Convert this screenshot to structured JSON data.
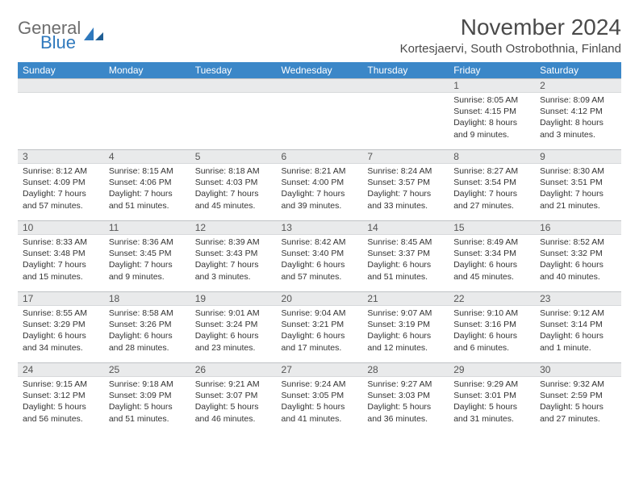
{
  "logo": {
    "word1": "General",
    "word2": "Blue",
    "brand_color": "#2f79bd",
    "gray": "#6d6d6d"
  },
  "header": {
    "title": "November 2024",
    "location": "Kortesjaervi, South Ostrobothnia, Finland"
  },
  "colors": {
    "th_bg": "#3b87c8",
    "th_text": "#ffffff",
    "daynum_bg": "#e9eaeb",
    "border": "#bfc2c5"
  },
  "weekdays": [
    "Sunday",
    "Monday",
    "Tuesday",
    "Wednesday",
    "Thursday",
    "Friday",
    "Saturday"
  ],
  "weeks": [
    [
      null,
      null,
      null,
      null,
      null,
      {
        "n": "1",
        "sr": "Sunrise: 8:05 AM",
        "ss": "Sunset: 4:15 PM",
        "d1": "Daylight: 8 hours",
        "d2": "and 9 minutes."
      },
      {
        "n": "2",
        "sr": "Sunrise: 8:09 AM",
        "ss": "Sunset: 4:12 PM",
        "d1": "Daylight: 8 hours",
        "d2": "and 3 minutes."
      }
    ],
    [
      {
        "n": "3",
        "sr": "Sunrise: 8:12 AM",
        "ss": "Sunset: 4:09 PM",
        "d1": "Daylight: 7 hours",
        "d2": "and 57 minutes."
      },
      {
        "n": "4",
        "sr": "Sunrise: 8:15 AM",
        "ss": "Sunset: 4:06 PM",
        "d1": "Daylight: 7 hours",
        "d2": "and 51 minutes."
      },
      {
        "n": "5",
        "sr": "Sunrise: 8:18 AM",
        "ss": "Sunset: 4:03 PM",
        "d1": "Daylight: 7 hours",
        "d2": "and 45 minutes."
      },
      {
        "n": "6",
        "sr": "Sunrise: 8:21 AM",
        "ss": "Sunset: 4:00 PM",
        "d1": "Daylight: 7 hours",
        "d2": "and 39 minutes."
      },
      {
        "n": "7",
        "sr": "Sunrise: 8:24 AM",
        "ss": "Sunset: 3:57 PM",
        "d1": "Daylight: 7 hours",
        "d2": "and 33 minutes."
      },
      {
        "n": "8",
        "sr": "Sunrise: 8:27 AM",
        "ss": "Sunset: 3:54 PM",
        "d1": "Daylight: 7 hours",
        "d2": "and 27 minutes."
      },
      {
        "n": "9",
        "sr": "Sunrise: 8:30 AM",
        "ss": "Sunset: 3:51 PM",
        "d1": "Daylight: 7 hours",
        "d2": "and 21 minutes."
      }
    ],
    [
      {
        "n": "10",
        "sr": "Sunrise: 8:33 AM",
        "ss": "Sunset: 3:48 PM",
        "d1": "Daylight: 7 hours",
        "d2": "and 15 minutes."
      },
      {
        "n": "11",
        "sr": "Sunrise: 8:36 AM",
        "ss": "Sunset: 3:45 PM",
        "d1": "Daylight: 7 hours",
        "d2": "and 9 minutes."
      },
      {
        "n": "12",
        "sr": "Sunrise: 8:39 AM",
        "ss": "Sunset: 3:43 PM",
        "d1": "Daylight: 7 hours",
        "d2": "and 3 minutes."
      },
      {
        "n": "13",
        "sr": "Sunrise: 8:42 AM",
        "ss": "Sunset: 3:40 PM",
        "d1": "Daylight: 6 hours",
        "d2": "and 57 minutes."
      },
      {
        "n": "14",
        "sr": "Sunrise: 8:45 AM",
        "ss": "Sunset: 3:37 PM",
        "d1": "Daylight: 6 hours",
        "d2": "and 51 minutes."
      },
      {
        "n": "15",
        "sr": "Sunrise: 8:49 AM",
        "ss": "Sunset: 3:34 PM",
        "d1": "Daylight: 6 hours",
        "d2": "and 45 minutes."
      },
      {
        "n": "16",
        "sr": "Sunrise: 8:52 AM",
        "ss": "Sunset: 3:32 PM",
        "d1": "Daylight: 6 hours",
        "d2": "and 40 minutes."
      }
    ],
    [
      {
        "n": "17",
        "sr": "Sunrise: 8:55 AM",
        "ss": "Sunset: 3:29 PM",
        "d1": "Daylight: 6 hours",
        "d2": "and 34 minutes."
      },
      {
        "n": "18",
        "sr": "Sunrise: 8:58 AM",
        "ss": "Sunset: 3:26 PM",
        "d1": "Daylight: 6 hours",
        "d2": "and 28 minutes."
      },
      {
        "n": "19",
        "sr": "Sunrise: 9:01 AM",
        "ss": "Sunset: 3:24 PM",
        "d1": "Daylight: 6 hours",
        "d2": "and 23 minutes."
      },
      {
        "n": "20",
        "sr": "Sunrise: 9:04 AM",
        "ss": "Sunset: 3:21 PM",
        "d1": "Daylight: 6 hours",
        "d2": "and 17 minutes."
      },
      {
        "n": "21",
        "sr": "Sunrise: 9:07 AM",
        "ss": "Sunset: 3:19 PM",
        "d1": "Daylight: 6 hours",
        "d2": "and 12 minutes."
      },
      {
        "n": "22",
        "sr": "Sunrise: 9:10 AM",
        "ss": "Sunset: 3:16 PM",
        "d1": "Daylight: 6 hours",
        "d2": "and 6 minutes."
      },
      {
        "n": "23",
        "sr": "Sunrise: 9:12 AM",
        "ss": "Sunset: 3:14 PM",
        "d1": "Daylight: 6 hours",
        "d2": "and 1 minute."
      }
    ],
    [
      {
        "n": "24",
        "sr": "Sunrise: 9:15 AM",
        "ss": "Sunset: 3:12 PM",
        "d1": "Daylight: 5 hours",
        "d2": "and 56 minutes."
      },
      {
        "n": "25",
        "sr": "Sunrise: 9:18 AM",
        "ss": "Sunset: 3:09 PM",
        "d1": "Daylight: 5 hours",
        "d2": "and 51 minutes."
      },
      {
        "n": "26",
        "sr": "Sunrise: 9:21 AM",
        "ss": "Sunset: 3:07 PM",
        "d1": "Daylight: 5 hours",
        "d2": "and 46 minutes."
      },
      {
        "n": "27",
        "sr": "Sunrise: 9:24 AM",
        "ss": "Sunset: 3:05 PM",
        "d1": "Daylight: 5 hours",
        "d2": "and 41 minutes."
      },
      {
        "n": "28",
        "sr": "Sunrise: 9:27 AM",
        "ss": "Sunset: 3:03 PM",
        "d1": "Daylight: 5 hours",
        "d2": "and 36 minutes."
      },
      {
        "n": "29",
        "sr": "Sunrise: 9:29 AM",
        "ss": "Sunset: 3:01 PM",
        "d1": "Daylight: 5 hours",
        "d2": "and 31 minutes."
      },
      {
        "n": "30",
        "sr": "Sunrise: 9:32 AM",
        "ss": "Sunset: 2:59 PM",
        "d1": "Daylight: 5 hours",
        "d2": "and 27 minutes."
      }
    ]
  ]
}
